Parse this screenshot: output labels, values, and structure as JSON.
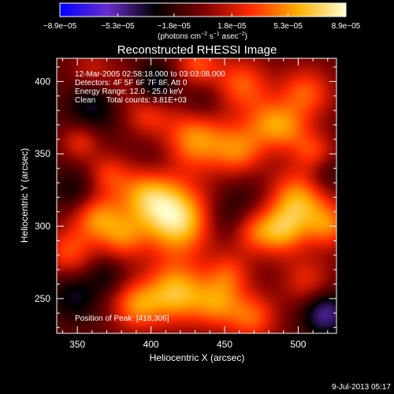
{
  "colorbar": {
    "tick_labels": [
      "−8.9e−05",
      "−5.3e−05",
      "−1.8e−05",
      "1.8e−05",
      "5.3e−05",
      "8.9e−05"
    ],
    "tick_values": [
      -8.9e-05,
      -5.3e-05,
      -1.8e-05,
      1.8e-05,
      5.3e-05,
      8.9e-05
    ],
    "range": [
      -8.9e-05,
      8.9e-05
    ],
    "unit_label": "(photons cm",
    "unit_exp1": "−2",
    "unit_mid": " s",
    "unit_exp2": "−1",
    "unit_mid2": " asec",
    "unit_exp3": "−2",
    "unit_close": ")",
    "stops": [
      "#0000ff",
      "#6a2cd0",
      "#000000",
      "#7a0000",
      "#ff2a00",
      "#ffb000",
      "#ffffd0"
    ]
  },
  "footer": {
    "timestamp": "9-Jul-2013 05:17"
  },
  "chart_data": {
    "type": "heatmap",
    "title": "Reconstructed RHESSI Image",
    "xlabel": "Heliocentric X (arcsec)",
    "ylabel": "Heliocentric Y (arcsec)",
    "xlim": [
      336,
      526
    ],
    "ylim": [
      226,
      416
    ],
    "x_ticks": [
      350,
      400,
      450,
      500
    ],
    "y_ticks": [
      250,
      300,
      350,
      400
    ],
    "annotations": [
      "12-Mar-2005 02:58:18.000 to 03:03:08.000",
      "Detectors: 4F 5F 6F 7F 8F, Att 0",
      "Energy Range: 12.0 - 25.0 keV",
      "Clean     Total counts: 3.81E+03"
    ],
    "peak_label": "Position of Peak: [418,306]",
    "peak": {
      "x": 418,
      "y": 306
    },
    "value_range": [
      -8.9e-05,
      8.9e-05
    ],
    "blobs": [
      {
        "x": 418,
        "y": 304,
        "value": 8.9e-05,
        "sigma": 17
      },
      {
        "x": 397,
        "y": 323,
        "value": 6.5e-05,
        "sigma": 15
      },
      {
        "x": 363,
        "y": 306,
        "value": 6e-05,
        "sigma": 12
      },
      {
        "x": 381,
        "y": 292,
        "value": 4.5e-05,
        "sigma": 11
      },
      {
        "x": 370,
        "y": 336,
        "value": 3.5e-05,
        "sigma": 10
      },
      {
        "x": 500,
        "y": 318,
        "value": 7e-05,
        "sigma": 15
      },
      {
        "x": 489,
        "y": 296,
        "value": 5.5e-05,
        "sigma": 12
      },
      {
        "x": 521,
        "y": 300,
        "value": 5e-05,
        "sigma": 11
      },
      {
        "x": 470,
        "y": 296,
        "value": 4e-05,
        "sigma": 11
      },
      {
        "x": 511,
        "y": 351,
        "value": 4e-05,
        "sigma": 10
      },
      {
        "x": 494,
        "y": 366,
        "value": 3.5e-05,
        "sigma": 11
      },
      {
        "x": 430,
        "y": 360,
        "value": 6.5e-05,
        "sigma": 15
      },
      {
        "x": 460,
        "y": 352,
        "value": 5.5e-05,
        "sigma": 13
      },
      {
        "x": 480,
        "y": 372,
        "value": 4.5e-05,
        "sigma": 12
      },
      {
        "x": 505,
        "y": 392,
        "value": 5e-05,
        "sigma": 13
      },
      {
        "x": 462,
        "y": 398,
        "value": 5e-05,
        "sigma": 13
      },
      {
        "x": 398,
        "y": 378,
        "value": 4e-05,
        "sigma": 11
      },
      {
        "x": 432,
        "y": 412,
        "value": 4.5e-05,
        "sigma": 11
      },
      {
        "x": 360,
        "y": 409,
        "value": 2.5e-05,
        "sigma": 10
      },
      {
        "x": 352,
        "y": 358,
        "value": 3.5e-05,
        "sigma": 9
      },
      {
        "x": 417,
        "y": 254,
        "value": 7.5e-05,
        "sigma": 15
      },
      {
        "x": 390,
        "y": 245,
        "value": 5.5e-05,
        "sigma": 12
      },
      {
        "x": 445,
        "y": 246,
        "value": 5e-05,
        "sigma": 12
      },
      {
        "x": 469,
        "y": 237,
        "value": 5e-05,
        "sigma": 12
      },
      {
        "x": 344,
        "y": 282,
        "value": 4.5e-05,
        "sigma": 12
      },
      {
        "x": 453,
        "y": 267,
        "value": 4e-05,
        "sigma": 11
      },
      {
        "x": 506,
        "y": 262,
        "value": 3.5e-05,
        "sigma": 12
      },
      {
        "x": 384,
        "y": 398,
        "value": 2e-05,
        "sigma": 10
      },
      {
        "x": 466,
        "y": 323,
        "value": -1.5e-05,
        "sigma": 14
      },
      {
        "x": 450,
        "y": 305,
        "value": -2e-05,
        "sigma": 11
      },
      {
        "x": 350,
        "y": 324,
        "value": -2.5e-05,
        "sigma": 12
      },
      {
        "x": 402,
        "y": 343,
        "value": -2e-05,
        "sigma": 12
      },
      {
        "x": 348,
        "y": 252,
        "value": -3e-05,
        "sigma": 12
      },
      {
        "x": 518,
        "y": 240,
        "value": -5e-05,
        "sigma": 11
      },
      {
        "x": 401,
        "y": 397,
        "value": -4e-05,
        "sigma": 11
      },
      {
        "x": 360,
        "y": 382,
        "value": -3e-05,
        "sigma": 12
      },
      {
        "x": 518,
        "y": 336,
        "value": -2.5e-05,
        "sigma": 10
      },
      {
        "x": 435,
        "y": 385,
        "value": -2e-05,
        "sigma": 10
      },
      {
        "x": 370,
        "y": 266,
        "value": -2e-05,
        "sigma": 9
      }
    ]
  }
}
